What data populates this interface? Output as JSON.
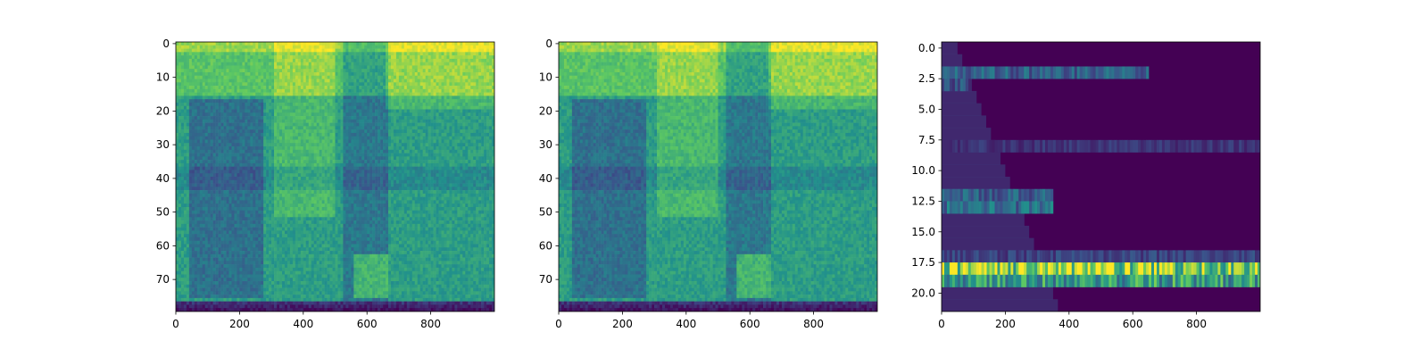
{
  "colors": {
    "low": "#440154",
    "mid_low": "#3b528b",
    "mid": "#21918c",
    "mid_high": "#5ec962",
    "high": "#fde725"
  },
  "chart_data": [
    {
      "type": "heatmap",
      "name": "left",
      "colormap": "viridis",
      "xlim": [
        0,
        1000
      ],
      "ylim": [
        79.5,
        -0.5
      ],
      "rows": 80,
      "x_ticks": [
        "0",
        "200",
        "400",
        "600",
        "800"
      ],
      "x_tick_values": [
        0,
        200,
        400,
        600,
        800
      ],
      "y_ticks": [
        "0",
        "10",
        "20",
        "30",
        "40",
        "50",
        "60",
        "70"
      ],
      "y_tick_values": [
        0,
        10,
        20,
        30,
        40,
        50,
        60,
        70
      ]
    },
    {
      "type": "heatmap",
      "name": "middle",
      "colormap": "viridis",
      "xlim": [
        0,
        1000
      ],
      "ylim": [
        79.5,
        -0.5
      ],
      "rows": 80,
      "x_ticks": [
        "0",
        "200",
        "400",
        "600",
        "800"
      ],
      "x_tick_values": [
        0,
        200,
        400,
        600,
        800
      ],
      "y_ticks": [
        "0",
        "10",
        "20",
        "30",
        "40",
        "50",
        "60",
        "70"
      ],
      "y_tick_values": [
        0,
        10,
        20,
        30,
        40,
        50,
        60,
        70
      ]
    },
    {
      "type": "heatmap",
      "name": "right",
      "colormap": "viridis",
      "xlim": [
        0,
        1000
      ],
      "ylim": [
        21.5,
        -0.5
      ],
      "rows": 22,
      "x_ticks": [
        "0",
        "200",
        "400",
        "600",
        "800"
      ],
      "x_tick_values": [
        0,
        200,
        400,
        600,
        800
      ],
      "y_ticks": [
        "0.0",
        "2.5",
        "5.0",
        "7.5",
        "10.0",
        "12.5",
        "15.0",
        "17.5",
        "20.0"
      ],
      "y_tick_values": [
        0,
        2.5,
        5,
        7.5,
        10,
        12.5,
        15,
        17.5,
        20
      ],
      "bright_rows": [
        {
          "row": 2,
          "level": 0.3,
          "x_end": 650
        },
        {
          "row": 3,
          "level": 0.25,
          "x_end": 80
        },
        {
          "row": 8,
          "level": 0.15,
          "x_end": 1000
        },
        {
          "row": 12,
          "level": 0.3,
          "x_end": 350
        },
        {
          "row": 13,
          "level": 0.35,
          "x_end": 350
        },
        {
          "row": 17,
          "level": 0.2,
          "x_end": 1000
        },
        {
          "row": 18,
          "level": 0.85,
          "x_end": 1000
        },
        {
          "row": 19,
          "level": 0.55,
          "x_end": 1000
        }
      ]
    }
  ]
}
